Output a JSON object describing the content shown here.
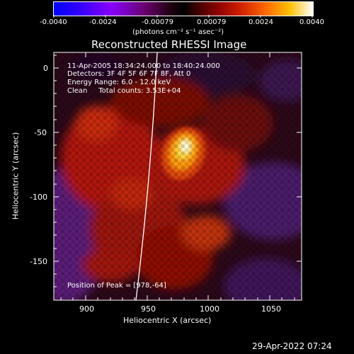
{
  "colorbar": {
    "ticks": [
      "-0.0040",
      "-0.0024",
      "-0.00079",
      "0.00079",
      "0.0024",
      "0.0040"
    ],
    "units": "(photons cm⁻² s⁻¹ asec⁻²)"
  },
  "plot": {
    "title": "Reconstructed RHESSI Image",
    "ylabel": "Heliocentric Y (arcsec)",
    "xlabel": "Heliocentric X (arcsec)",
    "x_ticks": [
      "900",
      "950",
      "1000",
      "1050"
    ],
    "y_ticks": [
      "0",
      "-50",
      "-100",
      "-150"
    ],
    "xlim": [
      876,
      1068
    ],
    "ylim": [
      -181,
      11
    ]
  },
  "annotations": {
    "line1": "11-Apr-2005 18:34:24.000 to 18:40:24.000",
    "line2": "Detectors: 3F 4F 5F 6F 7F 8F, Att 0",
    "line3": "Energy Range: 6.0 - 12.0 keV",
    "line4": "Clean     Total counts: 3.53E+04",
    "peak": "Position of Peak = [978,-64]"
  },
  "footer": {
    "timestamp": "29-Apr-2022 07:24"
  }
}
